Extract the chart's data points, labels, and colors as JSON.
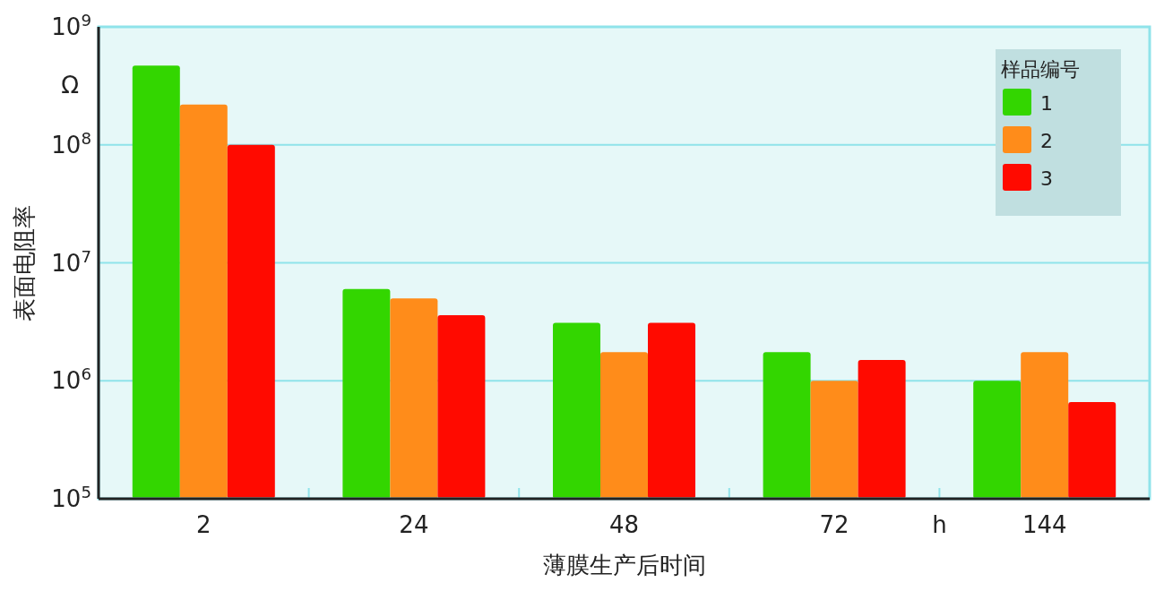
{
  "chart_data": {
    "type": "bar",
    "xlabel": "薄膜生产后时间",
    "ylabel": "表面电阻率",
    "legend_title": "样品编号",
    "categories": [
      "2",
      "24",
      "48",
      "72",
      "144"
    ],
    "series": [
      {
        "name": "1",
        "color": "#33d600",
        "values": [
          470000000,
          6000000,
          3100000,
          1750000,
          1000000
        ]
      },
      {
        "name": "2",
        "color": "#ff8c1a",
        "values": [
          220000000,
          5000000,
          1750000,
          1000000,
          1750000
        ]
      },
      {
        "name": "3",
        "color": "#ff0a00",
        "values": [
          100000000,
          3600000,
          3100000,
          1500000,
          660000
        ]
      }
    ],
    "log": "y",
    "ylim": [
      100000,
      1000000000
    ],
    "yticks": [
      {
        "value": 100000,
        "label": "10$^{5}$"
      },
      {
        "value": 1000000,
        "label": "10$^{6}$"
      },
      {
        "value": 10000000,
        "label": "10$^{7}$"
      },
      {
        "value": 100000000,
        "label": "10$^{8}$"
      },
      {
        "value": 1000000000,
        "label": "10$^{9}$"
      }
    ],
    "grid": "y",
    "legend": "top right",
    "annotations": [
      "Ω",
      "h"
    ]
  }
}
